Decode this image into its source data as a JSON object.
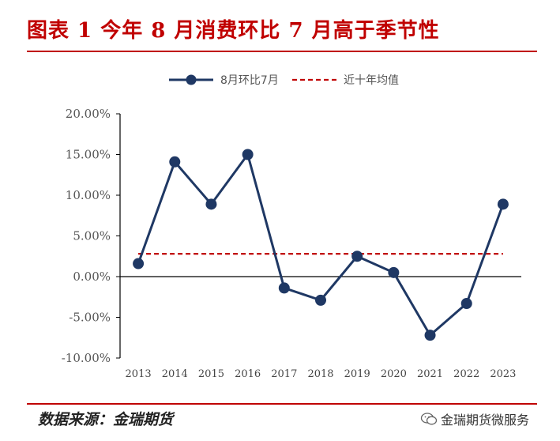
{
  "header": {
    "title": "图表 1  今年 8 月消费环比 7 月高于季节性",
    "rule_color": "#c00000"
  },
  "footer": {
    "source": "数据来源：金瑞期货",
    "watermark": "金瑞期货微服务",
    "watermark_icon": "wechat-icon"
  },
  "chart_data": {
    "type": "line",
    "categories": [
      "2013",
      "2014",
      "2015",
      "2016",
      "2017",
      "2018",
      "2019",
      "2020",
      "2021",
      "2022",
      "2023"
    ],
    "series": [
      {
        "name": "8月环比7月",
        "color": "#1f3864",
        "style": "solid-line-with-markers",
        "values": [
          1.6,
          14.1,
          8.9,
          15.0,
          -1.4,
          -2.9,
          2.5,
          0.5,
          -7.2,
          -3.3,
          8.9
        ]
      },
      {
        "name": "近十年均值",
        "color": "#c00000",
        "style": "dashed",
        "value": 2.8
      }
    ],
    "ylim": [
      -10,
      20
    ],
    "yticks": [
      20,
      15,
      10,
      5,
      0,
      -5,
      -10
    ],
    "ytick_labels": [
      "20.00%",
      "15.00%",
      "10.00%",
      "5.00%",
      "0.00%",
      "-5.00%",
      "-10.00%"
    ],
    "legend_position": "top-center",
    "grid": false
  }
}
